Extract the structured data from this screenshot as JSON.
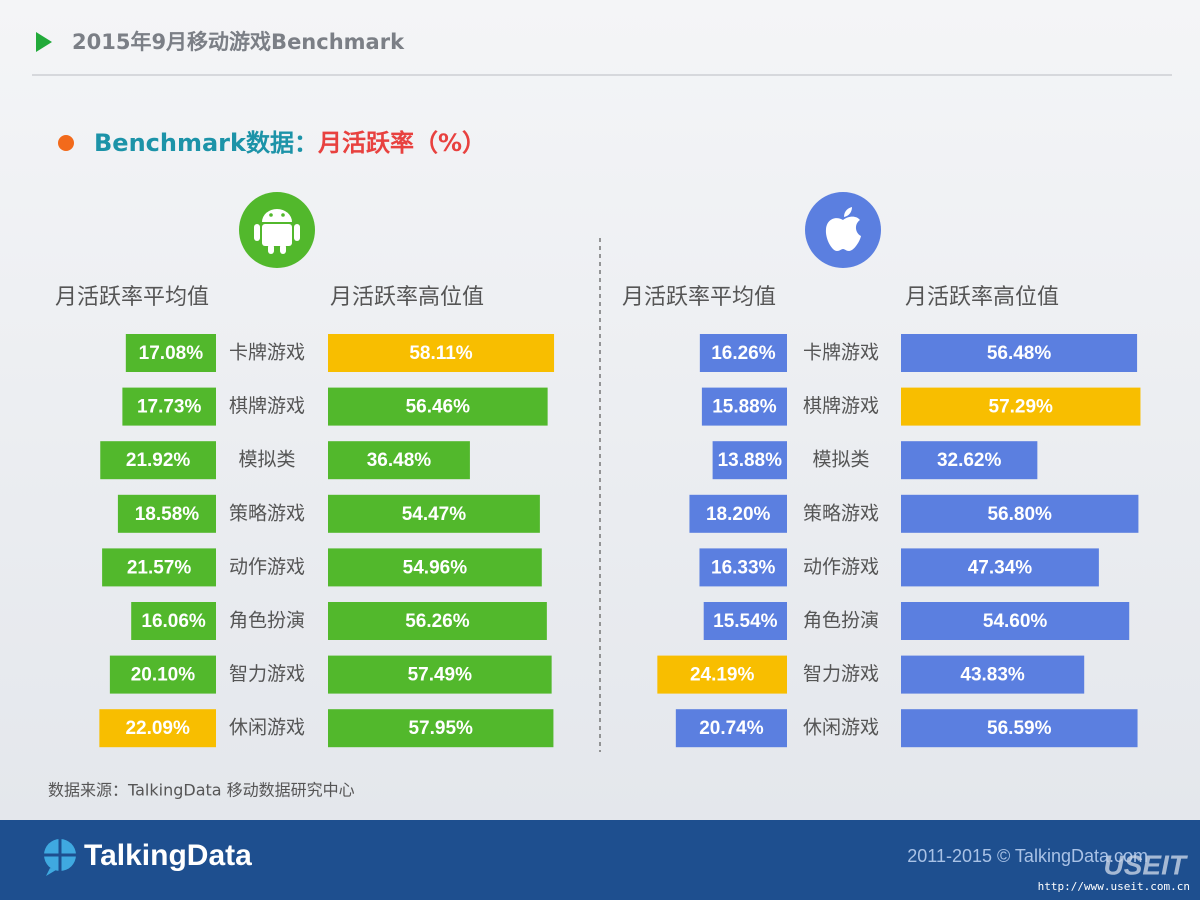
{
  "header": {
    "title": "2015年9月移动游戏Benchmark"
  },
  "subtitle": {
    "lead": "Benchmark数据：",
    "metric": "月活跃率（%）"
  },
  "chart_data": [
    {
      "type": "butterfly-bar",
      "categories": [
        "卡牌游戏",
        "棋牌游戏",
        "模拟类",
        "策略游戏",
        "动作游戏",
        "角色扮演",
        "智力游戏",
        "休闲游戏"
      ],
      "series": [
        {
          "name": "月活跃率平均值",
          "values": [
            17.08,
            17.73,
            21.92,
            18.58,
            21.57,
            16.06,
            20.1,
            22.09
          ],
          "value_labels": [
            "17.08%",
            "17.73%",
            "21.92%",
            "18.58%",
            "21.57%",
            "16.06%",
            "20.10%",
            "22.09%"
          ],
          "colors": [
            "#52b82c",
            "#52b82c",
            "#52b82c",
            "#52b82c",
            "#52b82c",
            "#52b82c",
            "#52b82c",
            "#f8be00"
          ]
        },
        {
          "name": "月活跃率高位值",
          "values": [
            58.11,
            56.46,
            36.48,
            54.47,
            54.96,
            56.26,
            57.49,
            57.95
          ],
          "value_labels": [
            "58.11%",
            "56.46%",
            "36.48%",
            "54.47%",
            "54.96%",
            "56.26%",
            "57.49%",
            "57.95%"
          ],
          "colors": [
            "#f8be00",
            "#52b82c",
            "#52b82c",
            "#52b82c",
            "#52b82c",
            "#52b82c",
            "#52b82c",
            "#52b82c"
          ]
        }
      ]
    },
    {
      "type": "butterfly-bar",
      "categories": [
        "卡牌游戏",
        "棋牌游戏",
        "模拟类",
        "策略游戏",
        "动作游戏",
        "角色扮演",
        "智力游戏",
        "休闲游戏"
      ],
      "series": [
        {
          "name": "月活跃率平均值",
          "values": [
            16.26,
            15.88,
            13.88,
            18.2,
            16.33,
            15.54,
            24.19,
            20.74
          ],
          "value_labels": [
            "16.26%",
            "15.88%",
            "13.88%",
            "18.20%",
            "16.33%",
            "15.54%",
            "24.19%",
            "20.74%"
          ],
          "colors": [
            "#5b7fe0",
            "#5b7fe0",
            "#5b7fe0",
            "#5b7fe0",
            "#5b7fe0",
            "#5b7fe0",
            "#f8be00",
            "#5b7fe0"
          ]
        },
        {
          "name": "月活跃率高位值",
          "values": [
            56.48,
            57.29,
            32.62,
            56.8,
            47.34,
            54.6,
            43.83,
            56.59
          ],
          "value_labels": [
            "56.48%",
            "57.29%",
            "32.62%",
            "56.80%",
            "47.34%",
            "54.60%",
            "43.83%",
            "56.59%"
          ],
          "colors": [
            "#5b7fe0",
            "#f8be00",
            "#5b7fe0",
            "#5b7fe0",
            "#5b7fe0",
            "#5b7fe0",
            "#5b7fe0",
            "#5b7fe0"
          ]
        }
      ]
    }
  ],
  "source": "数据来源：TalkingData 移动数据研究中心",
  "footer": {
    "logo": "TalkingData",
    "copyright": "2011-2015 © TalkingData.com",
    "watermark": "USEIT",
    "url": "http://www.useit.com.cn"
  }
}
